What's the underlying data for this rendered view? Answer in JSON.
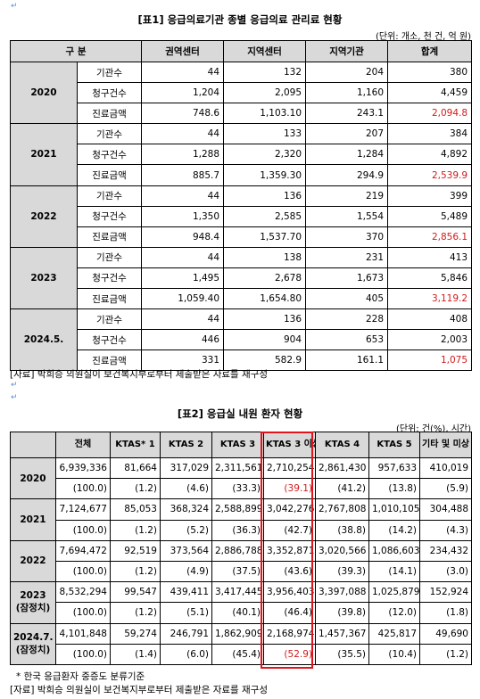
{
  "table1": {
    "title": "[표1] 응급의료기관 종별 응급의료 관리료 현황",
    "unit": "(단위: 개소, 천 건, 억 원)",
    "headers": [
      "구 분",
      "권역센터",
      "지역센터",
      "지역기관",
      "합계"
    ],
    "groups": [
      {
        "year": "2020",
        "rows": [
          {
            "label": "기관수",
            "values": [
              "44",
              "132",
              "204",
              "380"
            ]
          },
          {
            "label": "청구건수",
            "values": [
              "1,204",
              "2,095",
              "1,160",
              "4,459"
            ]
          },
          {
            "label": "진료금액",
            "values": [
              "748.6",
              "1,103.10",
              "243.1",
              "2,094.8"
            ]
          }
        ]
      },
      {
        "year": "2021",
        "rows": [
          {
            "label": "기관수",
            "values": [
              "44",
              "133",
              "207",
              "384"
            ]
          },
          {
            "label": "청구건수",
            "values": [
              "1,288",
              "2,320",
              "1,284",
              "4,892"
            ]
          },
          {
            "label": "진료금액",
            "values": [
              "885.7",
              "1,359.30",
              "294.9",
              "2,539.9"
            ]
          }
        ]
      },
      {
        "year": "2022",
        "rows": [
          {
            "label": "기관수",
            "values": [
              "44",
              "136",
              "219",
              "399"
            ]
          },
          {
            "label": "청구건수",
            "values": [
              "1,350",
              "2,585",
              "1,554",
              "5,489"
            ]
          },
          {
            "label": "진료금액",
            "values": [
              "948.4",
              "1,537.70",
              "370",
              "2,856.1"
            ]
          }
        ]
      },
      {
        "year": "2023",
        "rows": [
          {
            "label": "기관수",
            "values": [
              "44",
              "138",
              "231",
              "413"
            ]
          },
          {
            "label": "청구건수",
            "values": [
              "1,495",
              "2,678",
              "1,673",
              "5,846"
            ]
          },
          {
            "label": "진료금액",
            "values": [
              "1,059.40",
              "1,654.80",
              "405",
              "3,119.2"
            ]
          }
        ]
      },
      {
        "year": "2024.5.",
        "rows": [
          {
            "label": "기관수",
            "values": [
              "44",
              "136",
              "228",
              "408"
            ]
          },
          {
            "label": "청구건수",
            "values": [
              "446",
              "904",
              "653",
              "2,003"
            ]
          },
          {
            "label": "진료금액",
            "values": [
              "331",
              "582.9",
              "161.1",
              "1,075"
            ]
          }
        ]
      }
    ],
    "source": "[자료] 박희승 의원실이 보건복지부로부터 제출받은 자료를 재구성"
  },
  "table2": {
    "title": "[표2] 응급실 내원 환자 현황",
    "unit": "(단위: 건(%), 시간)",
    "headers": [
      "",
      "전체",
      "KTAS* 1",
      "KTAS 2",
      "KTAS 3",
      "KTAS 3 이상",
      "KTAS 4",
      "KTAS 5",
      "기타 및 미상"
    ],
    "groups": [
      {
        "year": "2020",
        "year2": "",
        "counts": [
          "6,939,336",
          "81,664",
          "317,029",
          "2,311,561",
          "2,710,254",
          "2,861,430",
          "957,633",
          "410,019"
        ],
        "pcts": [
          "(100.0)",
          "(1.2)",
          "(4.6)",
          "(33.3)",
          "(39.1)",
          "(41.2)",
          "(13.8)",
          "(5.9)"
        ]
      },
      {
        "year": "2021",
        "year2": "",
        "counts": [
          "7,124,677",
          "85,053",
          "368,324",
          "2,588,899",
          "3,042,276",
          "2,767,808",
          "1,010,105",
          "304,488"
        ],
        "pcts": [
          "(100.0)",
          "(1.2)",
          "(5.2)",
          "(36.3)",
          "(42.7)",
          "(38.8)",
          "(14.2)",
          "(4.3)"
        ]
      },
      {
        "year": "2022",
        "year2": "",
        "counts": [
          "7,694,472",
          "92,519",
          "373,564",
          "2,886,788",
          "3,352,871",
          "3,020,566",
          "1,086,603",
          "234,432"
        ],
        "pcts": [
          "(100.0)",
          "(1.2)",
          "(4.9)",
          "(37.5)",
          "(43.6)",
          "(39.3)",
          "(14.1)",
          "(3.0)"
        ]
      },
      {
        "year": "2023",
        "year2": "(잠정치)",
        "counts": [
          "8,532,294",
          "99,547",
          "439,411",
          "3,417,445",
          "3,956,403",
          "3,397,088",
          "1,025,879",
          "152,924"
        ],
        "pcts": [
          "(100.0)",
          "(1.2)",
          "(5.1)",
          "(40.1)",
          "(46.4)",
          "(39.8)",
          "(12.0)",
          "(1.8)"
        ]
      },
      {
        "year": "2024.7.",
        "year2": "(잠정치)",
        "counts": [
          "4,101,848",
          "59,274",
          "246,791",
          "1,862,909",
          "2,168,974",
          "1,457,367",
          "425,817",
          "49,690"
        ],
        "pcts": [
          "(100.0)",
          "(1.4)",
          "(6.0)",
          "(45.4)",
          "(52.9)",
          "(35.5)",
          "(10.4)",
          "(1.2)"
        ]
      }
    ],
    "footnote": "* 한국 응급환자 중증도 분류기준",
    "source": "[자료] 박희승 의원실이 보건복지부로부터 제출받은 자료를 재구성"
  },
  "colors": {
    "highlight_red": "#e0141c",
    "header_gray": "#d9d9d9",
    "red_text": "#d11a1a"
  }
}
